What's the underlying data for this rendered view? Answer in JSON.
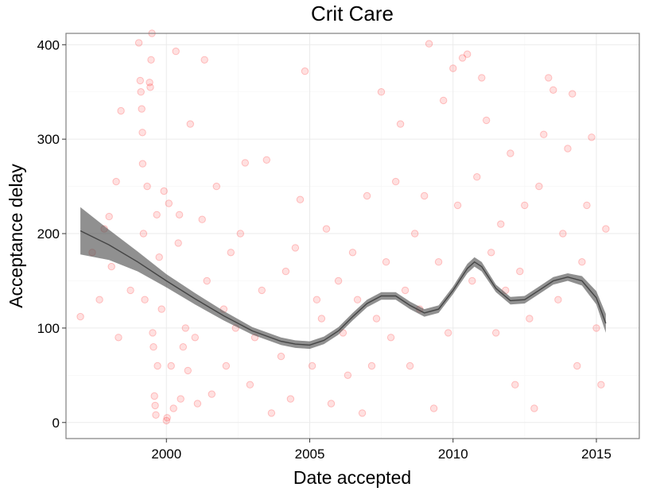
{
  "chart_data": {
    "type": "scatter",
    "title": "Crit Care",
    "xlabel": "Date accepted",
    "ylabel": "Acceptance delay",
    "xlim": [
      "1996-07-01",
      "2016-07-01"
    ],
    "ylim": [
      -17,
      412
    ],
    "x_ticks": [
      {
        "date": "2000-01-01",
        "label": "2000"
      },
      {
        "date": "2005-01-01",
        "label": "2005"
      },
      {
        "date": "2010-01-01",
        "label": "2010"
      },
      {
        "date": "2015-01-01",
        "label": "2015"
      }
    ],
    "y_ticks": [
      0,
      100,
      200,
      300,
      400
    ],
    "grid": true,
    "point_color": "#ff0000",
    "point_alpha": 0.15,
    "smooth_color": "#444444",
    "ribbon_color": "#666666",
    "points": [
      {
        "x": "1997-01-01",
        "y": 112
      },
      {
        "x": "1997-06-01",
        "y": 180
      },
      {
        "x": "1997-09-01",
        "y": 130
      },
      {
        "x": "1997-11-01",
        "y": 205
      },
      {
        "x": "1998-01-01",
        "y": 218
      },
      {
        "x": "1998-02-01",
        "y": 165
      },
      {
        "x": "1998-04-01",
        "y": 255
      },
      {
        "x": "1998-05-01",
        "y": 90
      },
      {
        "x": "1998-06-01",
        "y": 330
      },
      {
        "x": "1998-10-01",
        "y": 140
      },
      {
        "x": "1999-01-15",
        "y": 402
      },
      {
        "x": "1999-02-01",
        "y": 362
      },
      {
        "x": "1999-02-10",
        "y": 350
      },
      {
        "x": "1999-02-20",
        "y": 332
      },
      {
        "x": "1999-03-01",
        "y": 307
      },
      {
        "x": "1999-03-05",
        "y": 274
      },
      {
        "x": "1999-03-15",
        "y": 200
      },
      {
        "x": "1999-04-01",
        "y": 130
      },
      {
        "x": "1999-05-01",
        "y": 250
      },
      {
        "x": "1999-06-01",
        "y": 360
      },
      {
        "x": "1999-06-10",
        "y": 355
      },
      {
        "x": "1999-06-20",
        "y": 384
      },
      {
        "x": "1999-07-01",
        "y": 412
      },
      {
        "x": "1999-07-10",
        "y": 95
      },
      {
        "x": "1999-07-20",
        "y": 80
      },
      {
        "x": "1999-08-01",
        "y": 28
      },
      {
        "x": "1999-08-10",
        "y": 18
      },
      {
        "x": "1999-08-20",
        "y": 8
      },
      {
        "x": "1999-09-01",
        "y": 220
      },
      {
        "x": "1999-09-10",
        "y": 60
      },
      {
        "x": "1999-10-01",
        "y": 175
      },
      {
        "x": "1999-11-01",
        "y": 120
      },
      {
        "x": "1999-12-01",
        "y": 245
      },
      {
        "x": "2000-01-01",
        "y": 2
      },
      {
        "x": "2000-01-10",
        "y": 5
      },
      {
        "x": "2000-02-01",
        "y": 232
      },
      {
        "x": "2000-03-01",
        "y": 60
      },
      {
        "x": "2000-04-01",
        "y": 15
      },
      {
        "x": "2000-05-01",
        "y": 393
      },
      {
        "x": "2000-06-01",
        "y": 190
      },
      {
        "x": "2000-06-15",
        "y": 220
      },
      {
        "x": "2000-07-01",
        "y": 25
      },
      {
        "x": "2000-08-01",
        "y": 80
      },
      {
        "x": "2000-09-01",
        "y": 100
      },
      {
        "x": "2000-10-01",
        "y": 55
      },
      {
        "x": "2000-11-01",
        "y": 316
      },
      {
        "x": "2001-01-01",
        "y": 90
      },
      {
        "x": "2001-02-01",
        "y": 20
      },
      {
        "x": "2001-04-01",
        "y": 215
      },
      {
        "x": "2001-05-01",
        "y": 384
      },
      {
        "x": "2001-06-01",
        "y": 150
      },
      {
        "x": "2001-08-01",
        "y": 30
      },
      {
        "x": "2001-10-01",
        "y": 250
      },
      {
        "x": "2002-01-01",
        "y": 120
      },
      {
        "x": "2002-02-01",
        "y": 60
      },
      {
        "x": "2002-04-01",
        "y": 180
      },
      {
        "x": "2002-06-01",
        "y": 100
      },
      {
        "x": "2002-08-01",
        "y": 200
      },
      {
        "x": "2002-10-01",
        "y": 275
      },
      {
        "x": "2002-12-01",
        "y": 40
      },
      {
        "x": "2003-02-01",
        "y": 90
      },
      {
        "x": "2003-05-01",
        "y": 140
      },
      {
        "x": "2003-07-01",
        "y": 278
      },
      {
        "x": "2003-09-01",
        "y": 10
      },
      {
        "x": "2004-01-01",
        "y": 70
      },
      {
        "x": "2004-03-01",
        "y": 160
      },
      {
        "x": "2004-05-01",
        "y": 25
      },
      {
        "x": "2004-07-01",
        "y": 185
      },
      {
        "x": "2004-09-01",
        "y": 236
      },
      {
        "x": "2004-11-01",
        "y": 372
      },
      {
        "x": "2005-02-01",
        "y": 60
      },
      {
        "x": "2005-04-01",
        "y": 130
      },
      {
        "x": "2005-06-01",
        "y": 110
      },
      {
        "x": "2005-08-01",
        "y": 205
      },
      {
        "x": "2005-10-01",
        "y": 20
      },
      {
        "x": "2006-01-01",
        "y": 150
      },
      {
        "x": "2006-03-01",
        "y": 95
      },
      {
        "x": "2006-05-01",
        "y": 50
      },
      {
        "x": "2006-07-01",
        "y": 180
      },
      {
        "x": "2006-09-01",
        "y": 130
      },
      {
        "x": "2006-11-01",
        "y": 10
      },
      {
        "x": "2007-01-01",
        "y": 240
      },
      {
        "x": "2007-03-01",
        "y": 60
      },
      {
        "x": "2007-05-01",
        "y": 110
      },
      {
        "x": "2007-07-01",
        "y": 350
      },
      {
        "x": "2007-09-01",
        "y": 170
      },
      {
        "x": "2007-11-01",
        "y": 90
      },
      {
        "x": "2008-01-01",
        "y": 255
      },
      {
        "x": "2008-03-01",
        "y": 316
      },
      {
        "x": "2008-05-01",
        "y": 140
      },
      {
        "x": "2008-07-01",
        "y": 60
      },
      {
        "x": "2008-09-01",
        "y": 200
      },
      {
        "x": "2008-11-01",
        "y": 120
      },
      {
        "x": "2009-01-01",
        "y": 240
      },
      {
        "x": "2009-03-01",
        "y": 401
      },
      {
        "x": "2009-05-01",
        "y": 15
      },
      {
        "x": "2009-07-01",
        "y": 170
      },
      {
        "x": "2009-09-01",
        "y": 341
      },
      {
        "x": "2009-11-01",
        "y": 95
      },
      {
        "x": "2010-01-01",
        "y": 375
      },
      {
        "x": "2010-03-01",
        "y": 230
      },
      {
        "x": "2010-05-01",
        "y": 386
      },
      {
        "x": "2010-07-01",
        "y": 390
      },
      {
        "x": "2010-09-01",
        "y": 150
      },
      {
        "x": "2010-11-01",
        "y": 260
      },
      {
        "x": "2011-01-01",
        "y": 365
      },
      {
        "x": "2011-03-01",
        "y": 320
      },
      {
        "x": "2011-05-01",
        "y": 180
      },
      {
        "x": "2011-07-01",
        "y": 95
      },
      {
        "x": "2011-09-01",
        "y": 210
      },
      {
        "x": "2011-11-01",
        "y": 140
      },
      {
        "x": "2012-01-01",
        "y": 285
      },
      {
        "x": "2012-03-01",
        "y": 40
      },
      {
        "x": "2012-05-01",
        "y": 160
      },
      {
        "x": "2012-07-01",
        "y": 230
      },
      {
        "x": "2012-09-01",
        "y": 110
      },
      {
        "x": "2012-11-01",
        "y": 15
      },
      {
        "x": "2013-01-01",
        "y": 250
      },
      {
        "x": "2013-03-01",
        "y": 305
      },
      {
        "x": "2013-05-01",
        "y": 365
      },
      {
        "x": "2013-07-01",
        "y": 352
      },
      {
        "x": "2013-09-01",
        "y": 130
      },
      {
        "x": "2013-11-01",
        "y": 200
      },
      {
        "x": "2014-01-01",
        "y": 290
      },
      {
        "x": "2014-03-01",
        "y": 348
      },
      {
        "x": "2014-05-01",
        "y": 60
      },
      {
        "x": "2014-07-01",
        "y": 170
      },
      {
        "x": "2014-09-01",
        "y": 230
      },
      {
        "x": "2014-11-01",
        "y": 302
      },
      {
        "x": "2015-01-01",
        "y": 100
      },
      {
        "x": "2015-03-01",
        "y": 40
      },
      {
        "x": "2015-05-01",
        "y": 205
      }
    ],
    "smooth_band": [
      {
        "x": "1997-01-01",
        "y": 203,
        "lo": 178,
        "hi": 228
      },
      {
        "x": "1998-01-01",
        "y": 188,
        "lo": 172,
        "hi": 204
      },
      {
        "x": "1999-01-01",
        "y": 170,
        "lo": 160,
        "hi": 181
      },
      {
        "x": "2000-01-01",
        "y": 150,
        "lo": 143,
        "hi": 157
      },
      {
        "x": "2001-01-01",
        "y": 131,
        "lo": 125,
        "hi": 137
      },
      {
        "x": "2002-01-01",
        "y": 113,
        "lo": 108,
        "hi": 118
      },
      {
        "x": "2003-01-01",
        "y": 97,
        "lo": 93,
        "hi": 101
      },
      {
        "x": "2004-01-01",
        "y": 86,
        "lo": 82,
        "hi": 90
      },
      {
        "x": "2004-07-01",
        "y": 83,
        "lo": 79,
        "hi": 87
      },
      {
        "x": "2005-01-01",
        "y": 82,
        "lo": 78,
        "hi": 86
      },
      {
        "x": "2005-07-01",
        "y": 87,
        "lo": 83,
        "hi": 91
      },
      {
        "x": "2006-01-01",
        "y": 97,
        "lo": 93,
        "hi": 101
      },
      {
        "x": "2006-07-01",
        "y": 112,
        "lo": 108,
        "hi": 116
      },
      {
        "x": "2007-01-01",
        "y": 126,
        "lo": 122,
        "hi": 130
      },
      {
        "x": "2007-07-01",
        "y": 134,
        "lo": 130,
        "hi": 138
      },
      {
        "x": "2008-01-01",
        "y": 134,
        "lo": 130,
        "hi": 138
      },
      {
        "x": "2008-07-01",
        "y": 124,
        "lo": 120,
        "hi": 128
      },
      {
        "x": "2009-01-01",
        "y": 116,
        "lo": 112,
        "hi": 120
      },
      {
        "x": "2009-07-01",
        "y": 120,
        "lo": 116,
        "hi": 124
      },
      {
        "x": "2010-01-01",
        "y": 140,
        "lo": 136,
        "hi": 144
      },
      {
        "x": "2010-07-01",
        "y": 163,
        "lo": 158,
        "hi": 168
      },
      {
        "x": "2010-10-01",
        "y": 170,
        "lo": 165,
        "hi": 175
      },
      {
        "x": "2011-01-01",
        "y": 165,
        "lo": 160,
        "hi": 170
      },
      {
        "x": "2011-07-01",
        "y": 142,
        "lo": 138,
        "hi": 146
      },
      {
        "x": "2012-01-01",
        "y": 129,
        "lo": 125,
        "hi": 133
      },
      {
        "x": "2012-07-01",
        "y": 130,
        "lo": 126,
        "hi": 134
      },
      {
        "x": "2013-01-01",
        "y": 140,
        "lo": 136,
        "hi": 144
      },
      {
        "x": "2013-07-01",
        "y": 150,
        "lo": 146,
        "hi": 154
      },
      {
        "x": "2014-01-01",
        "y": 154,
        "lo": 150,
        "hi": 158
      },
      {
        "x": "2014-07-01",
        "y": 150,
        "lo": 145,
        "hi": 155
      },
      {
        "x": "2015-01-01",
        "y": 132,
        "lo": 125,
        "hi": 139
      },
      {
        "x": "2015-05-01",
        "y": 105,
        "lo": 95,
        "hi": 115
      }
    ]
  }
}
